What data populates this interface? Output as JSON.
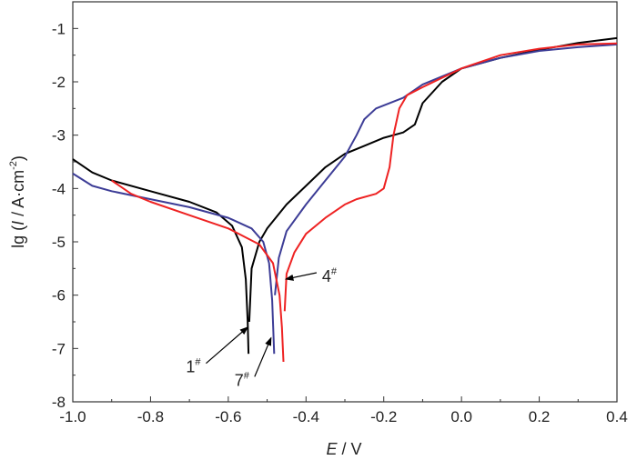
{
  "chart_data": {
    "type": "line",
    "xlabel_italic": "E",
    "xlabel_rest": " / V",
    "ylabel_pre": "lg (",
    "ylabel_italic": "I",
    "ylabel_rest": " / A·cm",
    "ylabel_sup": "-2",
    "ylabel_post": ")",
    "xlim": [
      -1.0,
      0.4
    ],
    "ylim": [
      -8,
      -0.5
    ],
    "xticks": [
      -1.0,
      -0.8,
      -0.6,
      -0.4,
      -0.2,
      0.0,
      0.2,
      0.4
    ],
    "xtick_labels": [
      "-1.0",
      "-0.8",
      "-0.6",
      "-0.4",
      "-0.2",
      "0.0",
      "0.2",
      "0.4"
    ],
    "yticks": [
      -8,
      -7,
      -6,
      -5,
      -4,
      -3,
      -2,
      -1
    ],
    "ytick_labels": [
      "-8",
      "-7",
      "-6",
      "-5",
      "-4",
      "-3",
      "-2",
      "-1"
    ],
    "grid": false,
    "series": [
      {
        "name": "1#",
        "color": "#000000",
        "label_pos": [
          -0.69,
          -7.45
        ],
        "arrow_to": [
          -0.55,
          -6.6
        ],
        "cathodic": [
          [
            -1.0,
            -3.45
          ],
          [
            -0.95,
            -3.7
          ],
          [
            -0.9,
            -3.85
          ],
          [
            -0.8,
            -4.05
          ],
          [
            -0.7,
            -4.25
          ],
          [
            -0.63,
            -4.45
          ],
          [
            -0.59,
            -4.7
          ],
          [
            -0.565,
            -5.1
          ],
          [
            -0.555,
            -5.7
          ],
          [
            -0.55,
            -6.5
          ],
          [
            -0.548,
            -7.1
          ]
        ],
        "anodic": [
          [
            -0.546,
            -6.5
          ],
          [
            -0.54,
            -5.5
          ],
          [
            -0.52,
            -5.0
          ],
          [
            -0.5,
            -4.75
          ],
          [
            -0.45,
            -4.3
          ],
          [
            -0.4,
            -3.95
          ],
          [
            -0.35,
            -3.6
          ],
          [
            -0.3,
            -3.35
          ],
          [
            -0.25,
            -3.2
          ],
          [
            -0.2,
            -3.05
          ],
          [
            -0.15,
            -2.95
          ],
          [
            -0.12,
            -2.8
          ],
          [
            -0.1,
            -2.4
          ],
          [
            -0.05,
            -2.0
          ],
          [
            0.0,
            -1.75
          ],
          [
            0.1,
            -1.55
          ],
          [
            0.2,
            -1.4
          ],
          [
            0.3,
            -1.27
          ],
          [
            0.4,
            -1.18
          ]
        ]
      },
      {
        "name": "7#",
        "color": "#3c3c96",
        "label_pos": [
          -0.565,
          -7.7
        ],
        "arrow_to": [
          -0.49,
          -6.8
        ],
        "cathodic": [
          [
            -1.0,
            -3.72
          ],
          [
            -0.95,
            -3.95
          ],
          [
            -0.9,
            -4.05
          ],
          [
            -0.8,
            -4.2
          ],
          [
            -0.7,
            -4.35
          ],
          [
            -0.6,
            -4.55
          ],
          [
            -0.54,
            -4.75
          ],
          [
            -0.51,
            -5.0
          ],
          [
            -0.495,
            -5.4
          ],
          [
            -0.487,
            -6.1
          ],
          [
            -0.482,
            -7.1
          ]
        ],
        "anodic": [
          [
            -0.48,
            -6.0
          ],
          [
            -0.47,
            -5.3
          ],
          [
            -0.45,
            -4.8
          ],
          [
            -0.4,
            -4.3
          ],
          [
            -0.35,
            -3.85
          ],
          [
            -0.3,
            -3.4
          ],
          [
            -0.27,
            -3.0
          ],
          [
            -0.25,
            -2.7
          ],
          [
            -0.22,
            -2.5
          ],
          [
            -0.15,
            -2.3
          ],
          [
            -0.1,
            -2.05
          ],
          [
            0.0,
            -1.75
          ],
          [
            0.1,
            -1.55
          ],
          [
            0.2,
            -1.42
          ],
          [
            0.3,
            -1.35
          ],
          [
            0.4,
            -1.3
          ]
        ]
      },
      {
        "name": "4#",
        "color": "#ee2222",
        "label_pos": [
          -0.34,
          -5.75
        ],
        "arrow_to": [
          -0.452,
          -5.7
        ],
        "cathodic": [
          [
            -0.9,
            -3.85
          ],
          [
            -0.85,
            -4.1
          ],
          [
            -0.8,
            -4.25
          ],
          [
            -0.7,
            -4.5
          ],
          [
            -0.6,
            -4.75
          ],
          [
            -0.52,
            -5.05
          ],
          [
            -0.485,
            -5.4
          ],
          [
            -0.468,
            -6.0
          ],
          [
            -0.462,
            -6.6
          ],
          [
            -0.458,
            -7.25
          ]
        ],
        "anodic": [
          [
            -0.455,
            -6.3
          ],
          [
            -0.45,
            -5.6
          ],
          [
            -0.43,
            -5.2
          ],
          [
            -0.4,
            -4.85
          ],
          [
            -0.35,
            -4.55
          ],
          [
            -0.3,
            -4.3
          ],
          [
            -0.27,
            -4.2
          ],
          [
            -0.22,
            -4.1
          ],
          [
            -0.2,
            -4.0
          ],
          [
            -0.185,
            -3.6
          ],
          [
            -0.175,
            -3.0
          ],
          [
            -0.16,
            -2.5
          ],
          [
            -0.14,
            -2.25
          ],
          [
            -0.1,
            -2.1
          ],
          [
            0.0,
            -1.75
          ],
          [
            0.1,
            -1.5
          ],
          [
            0.2,
            -1.38
          ],
          [
            0.3,
            -1.3
          ],
          [
            0.4,
            -1.28
          ]
        ]
      }
    ]
  }
}
